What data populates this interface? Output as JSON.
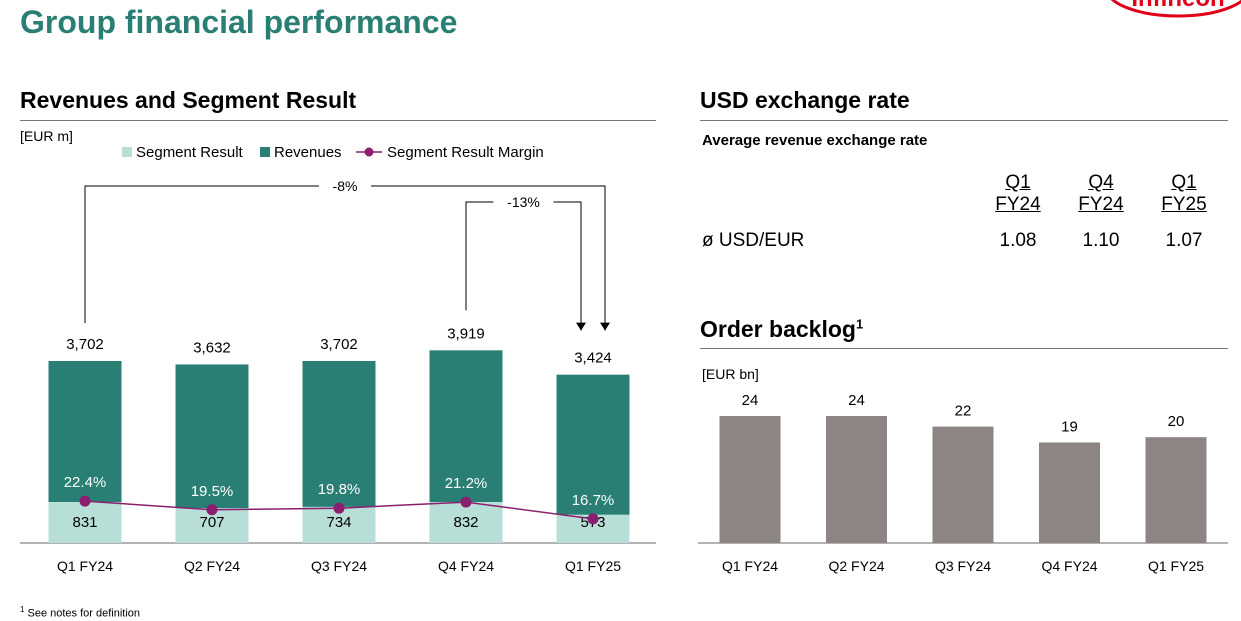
{
  "header": {
    "title": "Group financial performance",
    "logo_text": "Infineon"
  },
  "revenue_panel": {
    "title": "Revenues and Segment Result",
    "unit": "[EUR m]"
  },
  "fx_panel": {
    "title": "USD exchange rate",
    "subtitle": "Average revenue exchange rate",
    "columns": [
      {
        "line1": "Q1",
        "line2": "FY24"
      },
      {
        "line1": "Q4",
        "line2": "FY24"
      },
      {
        "line1": "Q1",
        "line2": "FY25"
      }
    ],
    "row_label": "ø USD/EUR",
    "values": [
      "1.08",
      "1.10",
      "1.07"
    ]
  },
  "backlog_panel": {
    "title": "Order backlog",
    "footnote_mark": "1",
    "unit": "[EUR bn]"
  },
  "footnote": {
    "mark": "1",
    "text": "See notes for definition"
  },
  "colors": {
    "title_green": "#2a7f74",
    "revenue_bar": "#2a7f74",
    "segment_bar": "#b7dfd7",
    "margin_line": "#8b1e6e",
    "backlog_bar": "#8c8584",
    "logo_red": "#e2001a"
  },
  "chart_data": [
    {
      "type": "bar",
      "categories": [
        "Q1 FY24",
        "Q2 FY24",
        "Q3 FY24",
        "Q4 FY24",
        "Q1 FY25"
      ],
      "series": [
        {
          "name": "Segment Result",
          "values": [
            831,
            707,
            734,
            832,
            573
          ],
          "labels": [
            "831",
            "707",
            "734",
            "832",
            "573"
          ]
        },
        {
          "name": "Revenues",
          "values": [
            3702,
            3632,
            3702,
            3919,
            3424
          ],
          "labels": [
            "3,702",
            "3,632",
            "3,702",
            "3,919",
            "3,424"
          ]
        },
        {
          "name": "Segment Result Margin",
          "values": [
            22.4,
            19.5,
            19.8,
            21.2,
            16.7
          ],
          "labels": [
            "22.4%",
            "19.5%",
            "19.8%",
            "21.2%",
            "16.7%"
          ]
        }
      ],
      "annotations": [
        {
          "text": "-8%",
          "from": "Q1 FY24",
          "to": "Q1 FY25"
        },
        {
          "text": "-13%",
          "from": "Q4 FY24",
          "to": "Q1 FY25"
        }
      ],
      "legend_position": "top",
      "grid": false
    },
    {
      "type": "bar",
      "categories": [
        "Q1 FY24",
        "Q2 FY24",
        "Q3 FY24",
        "Q4 FY24",
        "Q1 FY25"
      ],
      "values": [
        24,
        24,
        22,
        19,
        20
      ],
      "grid": false
    }
  ]
}
